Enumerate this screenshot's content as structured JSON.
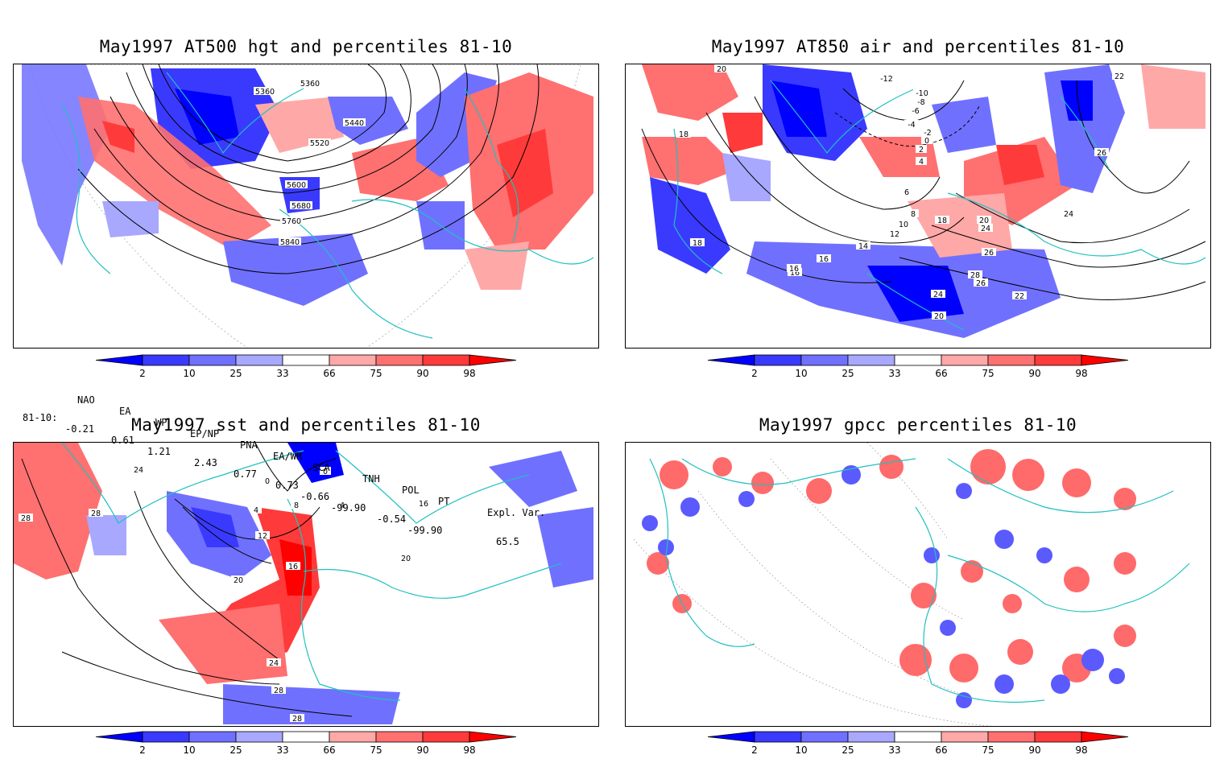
{
  "panels": [
    {
      "id": "hgt",
      "title": "May1997 AT500 hgt and percentiles 81-10",
      "contour_labels": [
        "5360",
        "5360",
        "5440",
        "5520",
        "5600",
        "5680",
        "5760",
        "5840"
      ]
    },
    {
      "id": "air",
      "title": "May1997 AT850 air and percentiles 81-10",
      "contour_labels": [
        "20",
        "18",
        "18",
        "16",
        "-12",
        "-10",
        "-8",
        "-6",
        "-4",
        "-2",
        "0",
        "2",
        "4",
        "6",
        "8",
        "10",
        "12",
        "14",
        "16",
        "16",
        "18",
        "20",
        "22",
        "22",
        "24",
        "24",
        "26",
        "26",
        "28",
        "26",
        "24",
        "22",
        "20",
        "18"
      ]
    },
    {
      "id": "sst",
      "title": "May1997 sst and percentiles 81-10",
      "contour_labels": [
        "24",
        "28",
        "28",
        "0",
        "0",
        "4",
        "8",
        "4",
        "12",
        "16",
        "16",
        "20",
        "20",
        "24",
        "28",
        "28"
      ]
    },
    {
      "id": "gpcc",
      "title": "May1997 gpcc percentiles 81-10",
      "contour_labels": []
    }
  ],
  "colorbar": {
    "ticks": [
      "2",
      "10",
      "25",
      "33",
      "66",
      "75",
      "90",
      "98"
    ],
    "colors": [
      "#0000ff",
      "#3a3aff",
      "#7070ff",
      "#a8a8ff",
      "#ffffff",
      "#ffa8a8",
      "#ff7070",
      "#ff3a3a",
      "#ff0000"
    ]
  },
  "indices": {
    "headers": [
      "NAO",
      "EA",
      "WP",
      "EP/NP",
      "PNA",
      "EA/WR",
      "SCA",
      "TNH",
      "POL",
      "PT",
      "Expl. Var."
    ],
    "row_label": "81-10:",
    "values": [
      "-0.21",
      "0.61",
      "1.21",
      "2.43",
      "0.77",
      "0.73",
      "-0.66",
      "-99.90",
      "-0.54",
      "-99.90",
      "65.5"
    ]
  }
}
